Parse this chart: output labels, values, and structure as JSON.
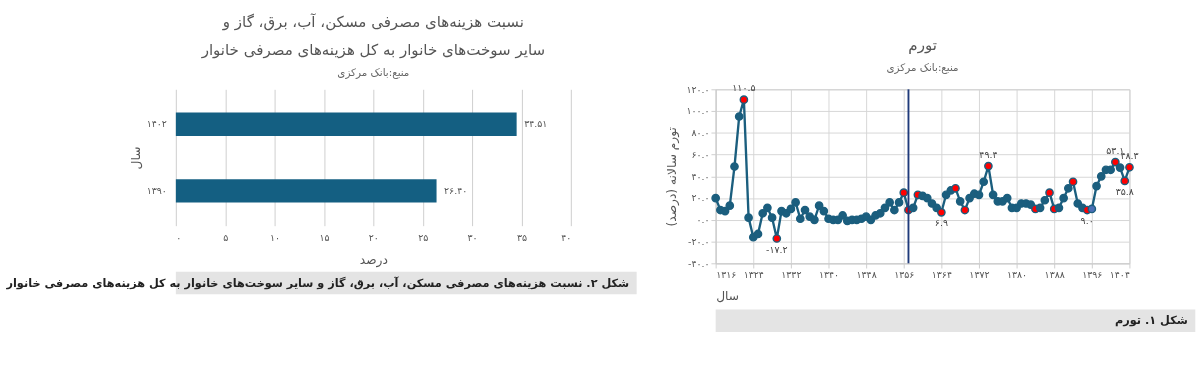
{
  "chart_data": [
    {
      "type": "line",
      "title": "تورم",
      "subtitle": "منبع:بانک مرکزی",
      "xlabel": "سال",
      "ylabel": "تورم سالانه (درصد)",
      "annotations": [
        "شکل ۱. تورم"
      ],
      "x": [
        1316,
        1317,
        1318,
        1319,
        1320,
        1321,
        1322,
        1323,
        1324,
        1325,
        1326,
        1327,
        1328,
        1329,
        1330,
        1331,
        1332,
        1333,
        1334,
        1335,
        1336,
        1337,
        1338,
        1339,
        1340,
        1341,
        1342,
        1343,
        1344,
        1345,
        1346,
        1347,
        1348,
        1349,
        1350,
        1351,
        1352,
        1353,
        1354,
        1355,
        1356,
        1357,
        1358,
        1359,
        1360,
        1361,
        1362,
        1363,
        1364,
        1365,
        1366,
        1367,
        1368,
        1369,
        1370,
        1371,
        1372,
        1373,
        1374,
        1375,
        1376,
        1377,
        1378,
        1379,
        1380,
        1381,
        1382,
        1383,
        1384,
        1385,
        1386,
        1387,
        1388,
        1389,
        1390,
        1391,
        1392,
        1393,
        1394,
        1395,
        1396,
        1397,
        1398,
        1399,
        1400,
        1401,
        1402,
        1403,
        1404
      ],
      "series": [
        {
          "color": "#1b5e7e",
          "values": [
            20,
            9,
            8,
            13,
            49,
            95,
            110.5,
            2,
            -16,
            -13,
            6,
            11,
            2,
            -17.2,
            8,
            6,
            10,
            16,
            1,
            9,
            3,
            0,
            13,
            8,
            1,
            0,
            0,
            4,
            -1,
            0,
            0,
            1,
            3,
            0,
            4,
            6,
            11,
            16,
            9,
            16,
            25,
            9,
            11,
            23,
            22,
            20,
            15,
            11,
            6.9,
            23,
            27,
            29,
            17,
            9,
            20,
            24,
            23,
            35,
            49.4,
            23,
            17,
            17,
            20,
            11,
            11,
            15,
            15,
            14,
            10,
            11,
            18,
            25,
            10,
            11,
            20,
            29,
            35,
            15,
            11,
            9.0,
            10,
            31,
            40,
            46,
            46,
            53.1,
            48,
            35.8,
            48.3
          ],
          "colors": [
            "#1b5e7e",
            "#1b5e7e",
            "#1b5e7e",
            "#1b5e7e",
            "#1b5e7e",
            "#1b5e7e",
            "#ff0000",
            "#1b5e7e",
            "#1b5e7e",
            "#1b5e7e",
            "#1b5e7e",
            "#1b5e7e",
            "#1b5e7e",
            "#ff0000",
            "#1b5e7e",
            "#1b5e7e",
            "#1b5e7e",
            "#1b5e7e",
            "#1b5e7e",
            "#1b5e7e",
            "#1b5e7e",
            "#1b5e7e",
            "#1b5e7e",
            "#1b5e7e",
            "#1b5e7e",
            "#1b5e7e",
            "#1b5e7e",
            "#1b5e7e",
            "#1b5e7e",
            "#1b5e7e",
            "#1b5e7e",
            "#1b5e7e",
            "#1b5e7e",
            "#1b5e7e",
            "#1b5e7e",
            "#1b5e7e",
            "#1b5e7e",
            "#1b5e7e",
            "#1b5e7e",
            "#1b5e7e",
            "#ff0000",
            "#ff0000",
            "#1b5e7e",
            "#ff0000",
            "#1b5e7e",
            "#1b5e7e",
            "#1b5e7e",
            "#1b5e7e",
            "#ff0000",
            "#1b5e7e",
            "#1b5e7e",
            "#ff0000",
            "#1b5e7e",
            "#ff0000",
            "#1b5e7e",
            "#1b5e7e",
            "#1b5e7e",
            "#1b5e7e",
            "#ff0000",
            "#1b5e7e",
            "#1b5e7e",
            "#1b5e7e",
            "#1b5e7e",
            "#1b5e7e",
            "#1b5e7e",
            "#1b5e7e",
            "#1b5e7e",
            "#1b5e7e",
            "#ff0000",
            "#1b5e7e",
            "#1b5e7e",
            "#ff0000",
            "#ff0000",
            "#1b5e7e",
            "#1b5e7e",
            "#1b5e7e",
            "#ff0000",
            "#1b5e7e",
            "#1b5e7e",
            "#ff0000",
            "#4a6fb5",
            "#1b5e7e",
            "#1b5e7e",
            "#1b5e7e",
            "#1b5e7e",
            "#ff0000",
            "#1b5e7e",
            "#ff0000",
            "#ff0000"
          ],
          "value_labels": [
            null,
            null,
            null,
            null,
            null,
            null,
            "۱۱۰.۵",
            null,
            null,
            null,
            null,
            null,
            null,
            "-۱۷.۲",
            null,
            null,
            null,
            null,
            null,
            null,
            null,
            null,
            null,
            null,
            null,
            null,
            null,
            null,
            null,
            null,
            null,
            null,
            null,
            null,
            null,
            null,
            null,
            null,
            null,
            null,
            null,
            null,
            null,
            null,
            null,
            null,
            null,
            null,
            "۶.۹",
            null,
            null,
            null,
            null,
            null,
            null,
            null,
            null,
            null,
            "۴۹.۴",
            null,
            null,
            null,
            null,
            null,
            null,
            null,
            null,
            null,
            null,
            null,
            null,
            null,
            null,
            null,
            null,
            null,
            null,
            null,
            null,
            "۹.۰",
            null,
            null,
            null,
            null,
            null,
            "۵۳.۱",
            null,
            "۳۵.۸",
            "۴۸.۳"
          ]
        }
      ],
      "xlim": [
        1316,
        1404
      ],
      "xticks": [
        {
          "value": 1316,
          "label": "۱۳۱۶"
        },
        {
          "value": 1324,
          "label": "۱۳۲۴"
        },
        {
          "value": 1332,
          "label": "۱۳۳۲"
        },
        {
          "value": 1340,
          "label": "۱۳۴۰"
        },
        {
          "value": 1348,
          "label": "۱۳۴۸"
        },
        {
          "value": 1356,
          "label": "۱۳۵۶"
        },
        {
          "value": 1364,
          "label": "۱۳۶۴"
        },
        {
          "value": 1372,
          "label": "۱۳۷۲"
        },
        {
          "value": 1380,
          "label": "۱۳۸۰"
        },
        {
          "value": 1388,
          "label": "۱۳۸۸"
        },
        {
          "value": 1396,
          "label": "۱۳۹۶"
        },
        {
          "value": 1404,
          "label": "۱۴۰۴"
        }
      ],
      "ylim": [
        -40,
        120
      ],
      "yticks": [
        {
          "value": -40,
          "label": "-۴۰.۰"
        },
        {
          "value": -20,
          "label": "-۲۰.۰"
        },
        {
          "value": 0,
          "label": "۰.۰"
        },
        {
          "value": 20,
          "label": "۲۰.۰"
        },
        {
          "value": 40,
          "label": "۴۰.۰"
        },
        {
          "value": 60,
          "label": "۶۰.۰"
        },
        {
          "value": 80,
          "label": "۸۰.۰"
        },
        {
          "value": 100,
          "label": "۱۰۰.۰"
        },
        {
          "value": 120,
          "label": "۱۲۰.۰"
        }
      ],
      "ref_lines": [
        {
          "axis": "x",
          "value": 1357,
          "color": "#1f3a7a"
        }
      ],
      "grid": true,
      "marker": "circle",
      "line_style": "solid"
    },
    {
      "type": "bar",
      "orientation": "horizontal",
      "title": "نسبت هزینه‌های مصرفی مسکن، آب، برق، گاز و سایر سوخت‌های خانوار به کل هزینه‌های مصرفی خانوار",
      "subtitle": "منبع:بانک مرکزی",
      "xlabel": "درصد",
      "ylabel": "سال",
      "annotations": [
        "شکل ۲. نسبت هزینه‌های مصرفی مسکن، آب، برق، گاز و سایر سوخت‌های خانوار به کل هزینه‌های مصرفی خانوار"
      ],
      "categories": [
        "۱۴۰۲",
        "۱۳۹۰"
      ],
      "values": [
        34.51,
        26.4
      ],
      "color": "#145f82",
      "value_labels": [
        "۳۴.۵۱",
        "۲۶.۴۰"
      ],
      "xlim": [
        0,
        40
      ],
      "xticks": [
        {
          "value": 0,
          "label": "۰"
        },
        {
          "value": 5,
          "label": "۵"
        },
        {
          "value": 10,
          "label": "۱۰"
        },
        {
          "value": 15,
          "label": "۱۵"
        },
        {
          "value": 20,
          "label": "۲۰"
        },
        {
          "value": 25,
          "label": "۲۵"
        },
        {
          "value": 30,
          "label": "۳۰"
        },
        {
          "value": 35,
          "label": "۳۵"
        },
        {
          "value": 40,
          "label": "۴۰"
        }
      ],
      "grid": "x"
    }
  ]
}
